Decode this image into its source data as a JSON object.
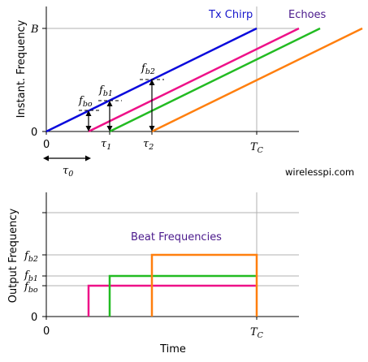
{
  "top_panel": {
    "y_axis_label": "Instant. Frequency",
    "y_tick_B": "B",
    "y_tick_zero": "0",
    "x_tick_zero": "0",
    "x_tick_tau1": "τ",
    "x_tick_tau1_sub": "1",
    "x_tick_tau2": "τ",
    "x_tick_tau2_sub": "2",
    "x_tick_tc": "T",
    "x_tick_tc_sub": "C",
    "tau0_label": "τ",
    "tau0_sub": "0",
    "legend_tx": "Tx Chirp",
    "legend_echoes": "Echoes",
    "fbo_label": "f",
    "fbo_sub": "bo",
    "fb1_label": "f",
    "fb1_sub": "b1",
    "fb2_label": "f",
    "fb2_sub": "b2"
  },
  "watermark": "wirelesspi.com",
  "bottom_panel": {
    "y_axis_label": "Output Frequency",
    "x_axis_label": "Time",
    "title": "Beat Frequencies",
    "y_tick_zero": "0",
    "y_tick_fb2": "f",
    "y_tick_fb2_sub": "b2",
    "y_tick_fb1": "f",
    "y_tick_fb1_sub": "b1",
    "y_tick_fbo": "f",
    "y_tick_fbo_sub": "bo",
    "x_tick_zero": "0",
    "x_tick_tc": "T",
    "x_tick_tc_sub": "C"
  },
  "colors": {
    "tx": "#0a0adc",
    "echo0": "#ee1188",
    "echo1": "#22bb22",
    "echo2": "#ff7f0e",
    "legend_tx": "#1515cc",
    "legend_echoes": "#4b1a8c",
    "title": "#4b1a8c",
    "grid": "#b0b0b0"
  }
}
